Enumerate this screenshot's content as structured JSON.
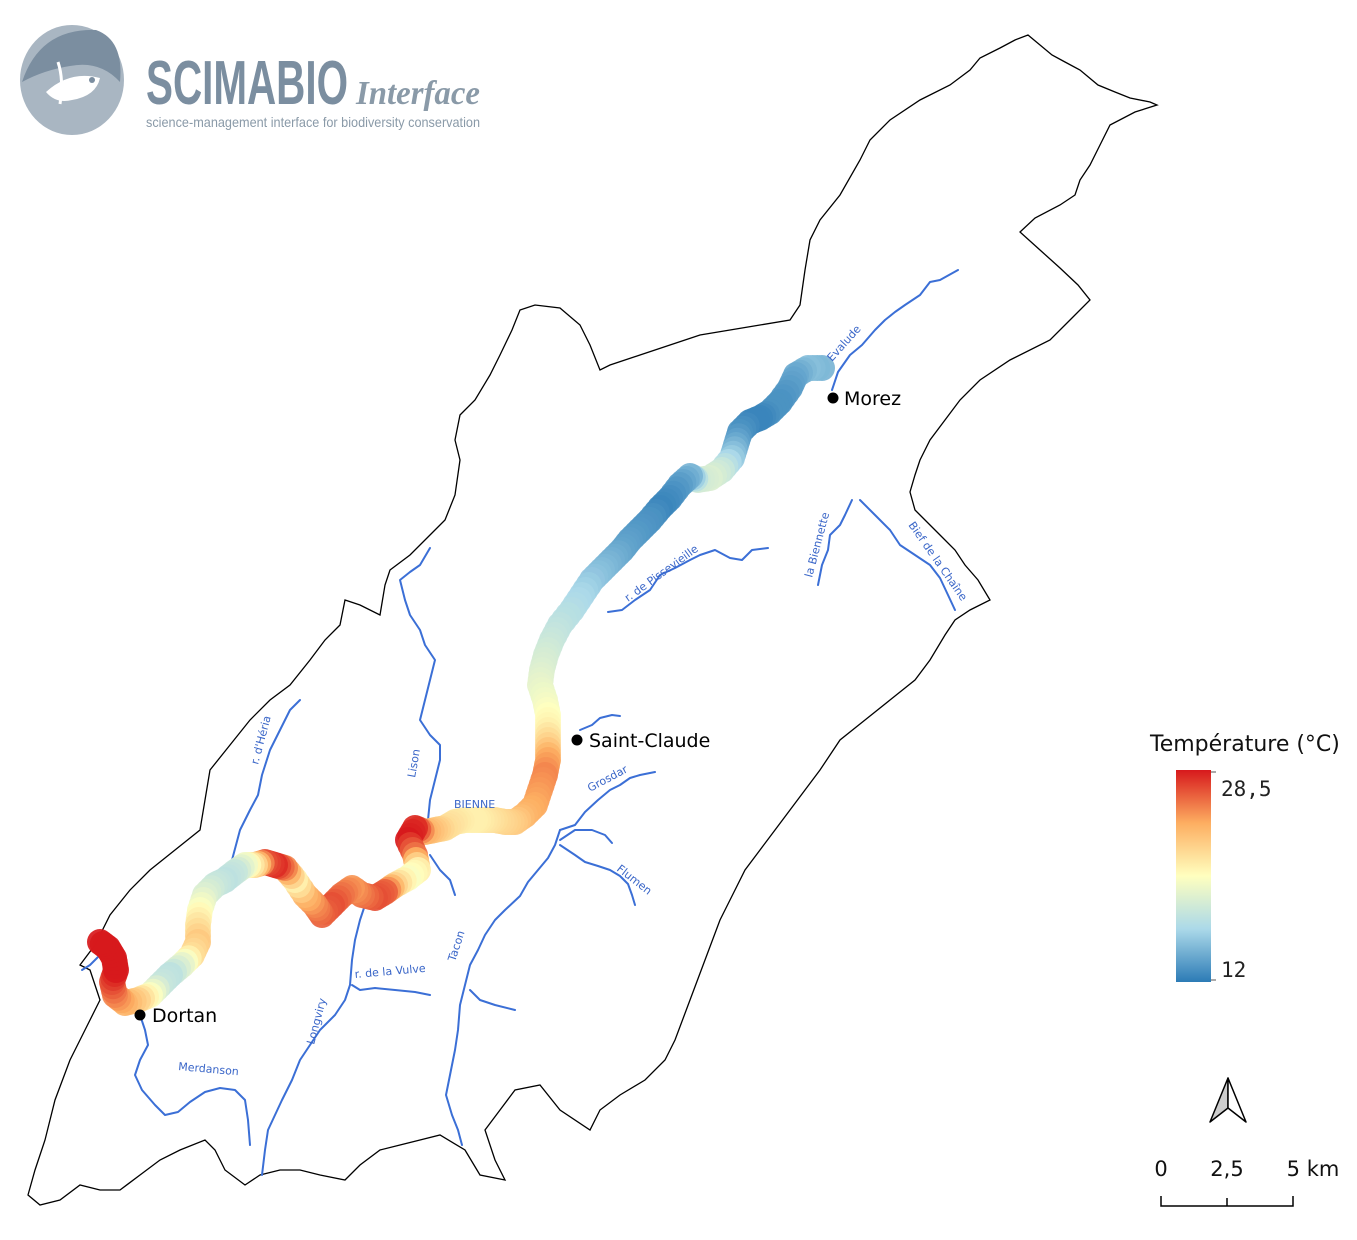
{
  "logo": {
    "title": "SCIMABIO",
    "subtitle": "Interface",
    "tagline": "science-management interface for biodiversity conservation",
    "colors": {
      "dark": "#7b8ea0",
      "light": "#a9b6c2"
    }
  },
  "legend": {
    "title": "Température (°C)",
    "max_label": "28,5",
    "min_label": "12",
    "max_value": 28.5,
    "min_value": 12,
    "colormap": [
      "#2c7bb6",
      "#abd9e9",
      "#ffffbf",
      "#fdae61",
      "#d7191c"
    ]
  },
  "towns": [
    {
      "name": "Morez"
    },
    {
      "name": "Saint-Claude"
    },
    {
      "name": "Dortan"
    }
  ],
  "rivers": [
    {
      "name": "Evalude"
    },
    {
      "name": "la Biennette"
    },
    {
      "name": "Bief de la Chaîne"
    },
    {
      "name": "r. de Pissevieille"
    },
    {
      "name": "Grosdar"
    },
    {
      "name": "Flumen"
    },
    {
      "name": "Tacon"
    },
    {
      "name": "BIENNE"
    },
    {
      "name": "Lison"
    },
    {
      "name": "r. d'Héria"
    },
    {
      "name": "r. de la Vulve"
    },
    {
      "name": "Longviry"
    },
    {
      "name": "Merdanson"
    }
  ],
  "scale_bar": {
    "labels": [
      "0",
      "2,5",
      "5 km"
    ]
  },
  "north_arrow": {
    "icon": "north-arrow-icon"
  },
  "temperature_track": [
    14.5,
    15,
    14,
    13.5,
    13,
    13,
    12.5,
    12.5,
    13,
    14,
    15.5,
    17.5,
    18.5,
    18,
    14.5,
    13.5,
    12.8,
    12.5,
    13,
    13.2,
    13.5,
    13.8,
    14.3,
    14.8,
    15.3,
    16,
    16.5,
    17,
    17.5,
    18,
    18.5,
    19,
    19.5,
    20.2,
    21,
    22.5,
    24.5,
    25.5,
    25,
    24.5,
    24,
    23,
    22.5,
    22,
    21.5,
    21,
    21,
    21.5,
    22,
    23,
    24,
    28,
    28.5,
    26,
    21,
    20,
    22.5,
    26.5,
    27,
    26,
    25,
    26,
    27,
    26.5,
    25.5,
    24,
    21,
    25.5,
    28,
    27,
    22.5,
    19.5,
    17.5,
    17,
    17.5,
    18.5,
    20,
    21.5,
    23,
    22,
    19,
    17,
    17.5,
    20,
    22.5,
    24,
    25.5,
    27,
    28.5,
    28.5,
    28.5,
    28.5
  ]
}
